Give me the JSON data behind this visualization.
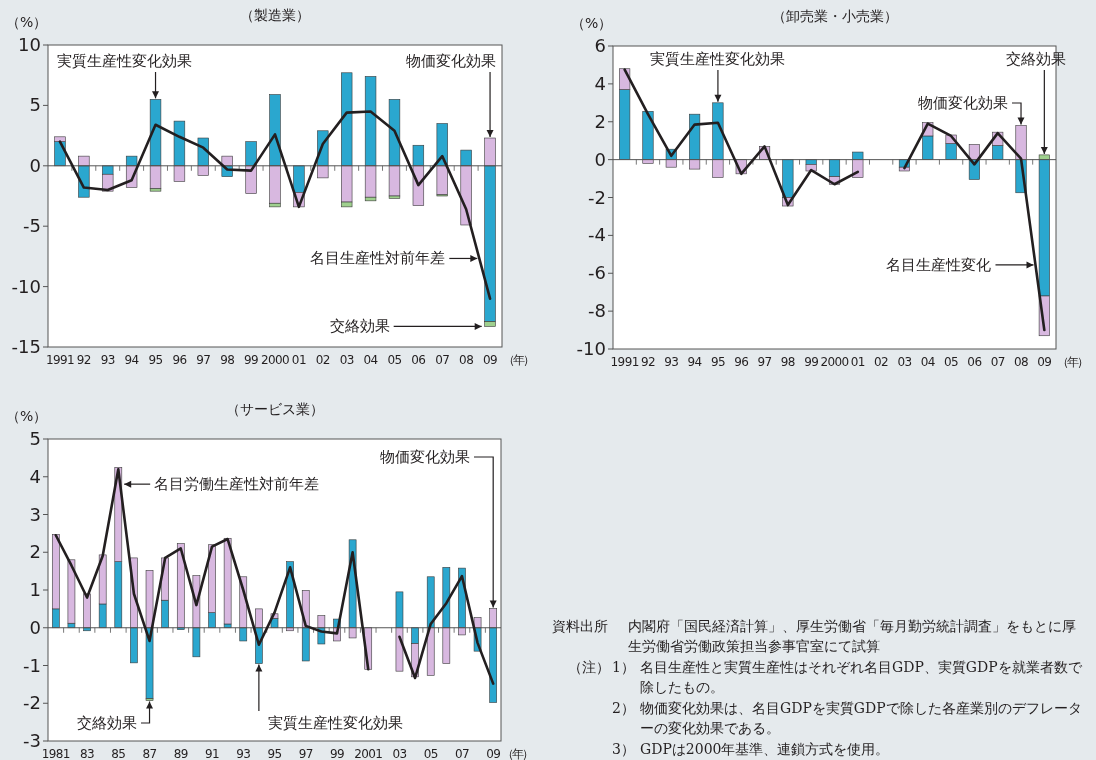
{
  "chart_data": [
    {
      "type": "bar",
      "title": "（製造業）",
      "xlabel": "（年）",
      "ylabel": "（%）",
      "stacked": true,
      "ylim": [
        -15,
        10
      ],
      "yticks": [
        -15,
        -10,
        -5,
        0,
        5,
        10
      ],
      "categories": [
        "1991",
        "92",
        "93",
        "94",
        "95",
        "96",
        "97",
        "98",
        "99",
        "2000",
        "01",
        "02",
        "03",
        "04",
        "05",
        "06",
        "07",
        "08",
        "09"
      ],
      "series": [
        {
          "name": "実質生産性変化効果",
          "color": "#2aa7cf",
          "values": [
            2.0,
            -2.6,
            -0.7,
            0.8,
            5.5,
            3.7,
            2.3,
            -0.9,
            2.0,
            5.9,
            -2.2,
            2.9,
            7.7,
            7.4,
            5.5,
            1.7,
            3.5,
            1.3,
            -12.9
          ]
        },
        {
          "name": "物価変化効果",
          "color": "#d8b8e0",
          "values": [
            0.4,
            0.8,
            -1.4,
            -1.8,
            -1.9,
            -1.3,
            -0.8,
            0.8,
            -2.3,
            -3.1,
            -1.2,
            -1.0,
            -3.0,
            -2.6,
            -2.5,
            -3.3,
            -2.4,
            -4.9,
            2.3
          ]
        },
        {
          "name": "交絡効果",
          "color": "#9fd08e",
          "values": [
            null,
            null,
            null,
            null,
            -0.2,
            null,
            null,
            null,
            null,
            -0.3,
            null,
            null,
            -0.4,
            -0.3,
            -0.2,
            null,
            -0.1,
            null,
            -0.4
          ]
        },
        {
          "name": "名目生産性対前年差",
          "type": "line",
          "color": "#231f20",
          "values": [
            2.0,
            -1.8,
            -2.0,
            -1.2,
            3.4,
            2.4,
            1.5,
            -0.3,
            -0.4,
            2.6,
            -3.4,
            1.8,
            4.4,
            4.5,
            2.9,
            -1.6,
            0.8,
            -3.6,
            -11.0
          ]
        }
      ]
    },
    {
      "type": "bar",
      "title": "（卸売業・小売業）",
      "xlabel": "（年）",
      "ylabel": "（%）",
      "stacked": true,
      "ylim": [
        -10,
        6
      ],
      "yticks": [
        -10,
        -8,
        -6,
        -4,
        -2,
        0,
        2,
        4,
        6
      ],
      "categories": [
        "1991",
        "92",
        "93",
        "94",
        "95",
        "96",
        "97",
        "98",
        "99",
        "2000",
        "01",
        "02",
        "03",
        "04",
        "05",
        "06",
        "07",
        "08",
        "09"
      ],
      "series": [
        {
          "name": "実質生産性変化効果",
          "color": "#2aa7cf",
          "values": [
            3.7,
            2.55,
            0.55,
            2.4,
            3.0,
            null,
            null,
            -2.0,
            -0.25,
            -0.9,
            0.4,
            null,
            -0.4,
            1.25,
            0.85,
            -1.05,
            0.75,
            -1.75,
            -7.2
          ]
        },
        {
          "name": "物価変化効果",
          "color": "#d8b8e0",
          "values": [
            1.1,
            -0.2,
            -0.4,
            -0.5,
            -0.95,
            -0.75,
            0.7,
            -0.45,
            -0.35,
            -0.4,
            -0.95,
            null,
            -0.2,
            0.7,
            0.45,
            0.8,
            0.7,
            1.8,
            -2.1
          ]
        },
        {
          "name": "交絡効果",
          "color": "#9fd08e",
          "values": [
            null,
            null,
            null,
            null,
            null,
            null,
            null,
            null,
            null,
            null,
            null,
            null,
            null,
            null,
            null,
            null,
            null,
            null,
            0.25
          ]
        },
        {
          "name": "名目生産性変化",
          "type": "line",
          "color": "#231f20",
          "values": [
            4.75,
            2.4,
            0.2,
            1.85,
            1.95,
            -0.75,
            0.7,
            -2.4,
            -0.55,
            -1.3,
            -0.65,
            null,
            -0.45,
            1.9,
            1.25,
            -0.25,
            1.4,
            0.05,
            -9.0
          ]
        }
      ]
    },
    {
      "type": "bar",
      "title": "（サービス業）",
      "xlabel": "（年）",
      "ylabel": "（%）",
      "stacked": true,
      "ylim": [
        -3,
        5
      ],
      "yticks": [
        -3,
        -2,
        -1,
        0,
        1,
        2,
        3,
        4,
        5
      ],
      "categories": [
        "1981",
        null,
        "83",
        null,
        "85",
        null,
        "87",
        null,
        "89",
        null,
        "91",
        null,
        "93",
        null,
        "95",
        null,
        "97",
        null,
        "99",
        null,
        "2001",
        null,
        "03",
        null,
        "05",
        null,
        "07",
        null,
        "09"
      ],
      "series": [
        {
          "name": "実質生産性変化効果",
          "color": "#2aa7cf",
          "values": [
            0.5,
            0.12,
            -0.08,
            0.63,
            1.75,
            -0.93,
            -1.88,
            0.73,
            -0.05,
            -0.77,
            0.4,
            0.1,
            -0.35,
            -0.95,
            0.25,
            1.75,
            -0.88,
            -0.43,
            0.23,
            2.33,
            null,
            null,
            0.95,
            -0.42,
            1.35,
            1.6,
            1.58,
            -0.62,
            -1.98
          ]
        },
        {
          "name": "物価変化効果",
          "color": "#d8b8e0",
          "values": [
            1.97,
            1.68,
            0.9,
            1.3,
            2.5,
            1.85,
            1.52,
            1.12,
            2.23,
            1.38,
            1.8,
            2.27,
            1.35,
            0.5,
            0.12,
            -0.08,
            0.99,
            0.32,
            -0.35,
            -0.27,
            -1.1,
            null,
            -1.15,
            -0.88,
            -1.26,
            -0.95,
            -0.19,
            0.27,
            0.51
          ]
        },
        {
          "name": "交絡効果",
          "color": "#9fd08e",
          "values": [
            null,
            null,
            null,
            null,
            null,
            null,
            -0.05,
            null,
            null,
            null,
            null,
            null,
            null,
            null,
            null,
            null,
            null,
            null,
            null,
            null,
            null,
            null,
            null,
            null,
            null,
            null,
            null,
            null,
            null
          ]
        },
        {
          "name": "名目労働生産性対前年差",
          "type": "line",
          "color": "#231f20",
          "values": [
            2.45,
            1.65,
            0.8,
            1.9,
            4.2,
            0.9,
            -0.35,
            1.85,
            2.1,
            0.6,
            2.15,
            2.35,
            1.0,
            -0.45,
            0.4,
            1.6,
            0.05,
            -0.1,
            -0.15,
            2.0,
            -1.1,
            null,
            -0.24,
            -1.33,
            0.1,
            0.65,
            1.37,
            -0.4,
            -1.48
          ]
        }
      ]
    },
    {
      "type": "other",
      "annotations": [
        "資料出所",
        "内閣府「国民経済計算」、厚生労働省「毎月勤労統計調査」をもとに厚生労働省労働政策担当参事官室にて試算",
        "（注）",
        "1）",
        "名目生産性と実質生産性はそれぞれ名目GDP、実質GDPを就業者数で除したもの。",
        "2）",
        "物価変化効果は、名目GDPを実質GDPで除した各産業別のデフレーターの変化効果である。",
        "3）",
        "GDPは2000年基準、連鎖方式を使用。"
      ]
    }
  ]
}
